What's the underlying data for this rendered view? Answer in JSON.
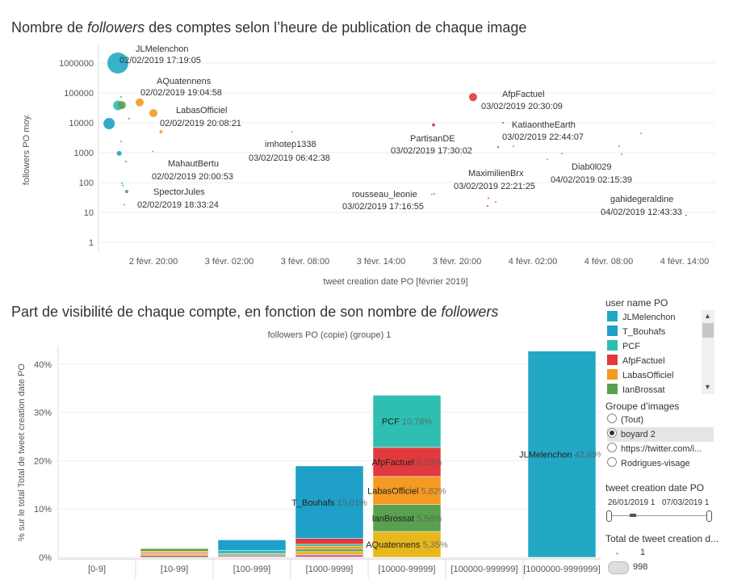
{
  "title1": {
    "pre": "Nombre de ",
    "em": "followers",
    "post": " des comptes selon l’heure de publication de chaque image"
  },
  "title2": {
    "pre": "Part de visibilité de chaque compte, en fonction de son nombre de ",
    "em": "followers"
  },
  "colors": {
    "JLMelenchon": "#22a8c4",
    "T_Bouhafs": "#1fa0c8",
    "PCF": "#2ebfb2",
    "AfpFactuel": "#e03a3e",
    "LabasOfficiel": "#f59a22",
    "IanBrossat": "#59a14f",
    "AQuatennens": "#e6b81e",
    "other_pink": "#d37295",
    "other_brown": "#9c755f",
    "other_grey": "#bab0ac"
  },
  "chart_data": [
    {
      "type": "scatter",
      "title": "Nombre de followers des comptes selon l’heure de publication de chaque image",
      "xlabel": "tweet creation date PO [février 2019]",
      "ylabel": "followers PO moy.",
      "yscale": "log",
      "ylim": [
        1,
        2000000
      ],
      "yticks": [
        "1",
        "10",
        "100",
        "1000",
        "10000",
        "100000",
        "1000000"
      ],
      "xticks": [
        "2 févr. 20:00",
        "3 févr. 02:00",
        "3 févr. 08:00",
        "3 févr. 14:00",
        "3 févr. 20:00",
        "4 févr. 02:00",
        "4 févr. 08:00",
        "4 févr. 14:00"
      ],
      "xlim_hours": [
        15,
        44
      ],
      "points": [
        {
          "h": 17.32,
          "y": 1000000,
          "color": "JLMelenchon",
          "r": 13,
          "label": "JLMelenchon",
          "date": "02/02/2019 17:19:05"
        },
        {
          "h": 17.2,
          "y": 38000,
          "color": "PCF",
          "r": 6
        },
        {
          "h": 17.5,
          "y": 39000,
          "color": "IanBrossat",
          "r": 5
        },
        {
          "h": 19.08,
          "y": 48000,
          "color": "LabasOfficiel",
          "r": 5,
          "label": "AQuatennens",
          "date": "02/02/2019 19:04:58"
        },
        {
          "h": 20.14,
          "y": 21000,
          "color": "LabasOfficiel",
          "r": 5,
          "label": "LabasOfficiel",
          "date": "02/02/2019 20:08:21"
        },
        {
          "h": 16.5,
          "y": 9400,
          "color": "T_Bouhafs",
          "r": 7
        },
        {
          "h": 20.6,
          "y": 5000,
          "color": "LabasOfficiel",
          "r": 2
        },
        {
          "h": 17.3,
          "y": 950,
          "color": "T_Bouhafs",
          "r": 3
        },
        {
          "h": 20.0,
          "y": 1100,
          "color": "other_pink",
          "r": 1,
          "label": "MahautBertu",
          "date": "02/02/2019 20:00:53"
        },
        {
          "h": 18.57,
          "y": 50,
          "color": "IanBrossat",
          "r": 2,
          "label": "SpectorJules",
          "date": "02/02/2019 18:33:24"
        },
        {
          "h": 17.7,
          "y": 18,
          "color": "IanBrossat",
          "r": 1
        },
        {
          "h": 17.6,
          "y": 80,
          "color": "IanBrossat",
          "r": 1
        },
        {
          "h": 30.7,
          "y": 5000,
          "color": "other_pink",
          "r": 1,
          "label": "imhotep1338",
          "date": "03/02/2019 06:42:38"
        },
        {
          "h": 41.3,
          "y": 8500,
          "color": "AfpFactuel",
          "r": 2,
          "label": "PartisanDE",
          "date": "03/02/2019 17:30:02"
        },
        {
          "h": 41.28,
          "y": 40,
          "color": "other_pink",
          "r": 1,
          "label": "rousseau_leonie",
          "date": "03/02/2019 17:16:55"
        },
        {
          "h": 44.5,
          "y": 72000,
          "color": "AfpFactuel",
          "r": 5,
          "label": "AfpFactuel",
          "date": "03/02/2019 20:30:09"
        },
        {
          "h": 46.7,
          "y": 1500,
          "color": "other_pink",
          "r": 1,
          "label": "KatiaontheEarth",
          "date": "03/02/2019 22:44:07"
        },
        {
          "h": 46.4,
          "y": 30,
          "color": "AfpFactuel",
          "r": 1,
          "label": "MaximilienBrx",
          "date": "03/02/2019 22:21:25"
        },
        {
          "h": 50.3,
          "y": 600,
          "color": "other_pink",
          "r": 1,
          "label": "Diab0l029",
          "date": "04/02/2019 02:15:39"
        },
        {
          "h": 60.7,
          "y": 8,
          "color": "T_Bouhafs",
          "r": 1,
          "label": "gahidegeraldine",
          "date": "04/02/2019 12:43:33"
        }
      ]
    },
    {
      "type": "bar",
      "stacked": true,
      "title": "followers PO (copie) (groupe) 1",
      "ylabel": "% sur le total Total de tweet creation date PO",
      "ylim": [
        0,
        45
      ],
      "yticks": [
        "0%",
        "10%",
        "20%",
        "30%",
        "40%"
      ],
      "categories": [
        "[0-9]",
        "[10-99]",
        "[100-999]",
        "[1000-9999]",
        "[10000-99999]",
        "[100000-999999]",
        "[1000000-9999999]"
      ],
      "stacks": [
        [],
        [
          {
            "c": "other_brown",
            "v": 0.4
          },
          {
            "c": "AQuatennens",
            "v": 0.3
          },
          {
            "c": "other_pink",
            "v": 0.3
          },
          {
            "c": "LabasOfficiel",
            "v": 0.3
          },
          {
            "c": "IanBrossat",
            "v": 0.5
          }
        ],
        [
          {
            "c": "other_grey",
            "v": 0.8
          },
          {
            "c": "PCF",
            "v": 0.6
          },
          {
            "c": "T_Bouhafs",
            "v": 2.2
          }
        ],
        [
          {
            "c": "other_pink",
            "v": 0.6
          },
          {
            "c": "AQuatennens",
            "v": 0.6
          },
          {
            "c": "IanBrossat",
            "v": 0.5
          },
          {
            "c": "LabasOfficiel",
            "v": 0.6
          },
          {
            "c": "PCF",
            "v": 0.4
          },
          {
            "c": "AfpFactuel",
            "v": 1.2
          },
          {
            "c": "T_Bouhafs",
            "v": 15.01,
            "name": "T_Bouhafs",
            "pct": "15,01%"
          }
        ],
        [
          {
            "c": "AQuatennens",
            "v": 5.35,
            "name": "AQuatennens",
            "pct": "5,35%"
          },
          {
            "c": "IanBrossat",
            "v": 5.56,
            "name": "IanBrossat",
            "pct": "5,56%"
          },
          {
            "c": "LabasOfficiel",
            "v": 5.82,
            "name": "LabasOfficiel",
            "pct": "5,82%"
          },
          {
            "c": "AfpFactuel",
            "v": 6.03,
            "name": "AfpFactuel",
            "pct": "6,03%"
          },
          {
            "c": "PCF",
            "v": 10.78,
            "name": "PCF",
            "pct": "10,78%"
          }
        ],
        [],
        [
          {
            "c": "JLMelenchon",
            "v": 42.69,
            "name": "JLMelenchon",
            "pct": "42,69%"
          }
        ]
      ]
    }
  ],
  "legend": {
    "title": "user name PO",
    "items": [
      {
        "name": "JLMelenchon",
        "color": "#22a8c4"
      },
      {
        "name": "T_Bouhafs",
        "color": "#1fa0c8"
      },
      {
        "name": "PCF",
        "color": "#2ebfb2"
      },
      {
        "name": "AfpFactuel",
        "color": "#e03a3e"
      },
      {
        "name": "LabasOfficiel",
        "color": "#f59a22"
      },
      {
        "name": "IanBrossat",
        "color": "#59a14f"
      }
    ]
  },
  "filter_groupe": {
    "title": "Groupe d’images",
    "options": [
      "(Tout)",
      "boyard 2",
      "https://twitter.com/i...",
      "Rodrigues-visage"
    ],
    "selected": 1
  },
  "date_filter": {
    "title": "tweet creation date PO",
    "start": "26/01/2019 1",
    "end": "07/03/2019 1"
  },
  "size_legend": {
    "title": "Total de tweet creation d...",
    "min": "1",
    "max": "998"
  }
}
